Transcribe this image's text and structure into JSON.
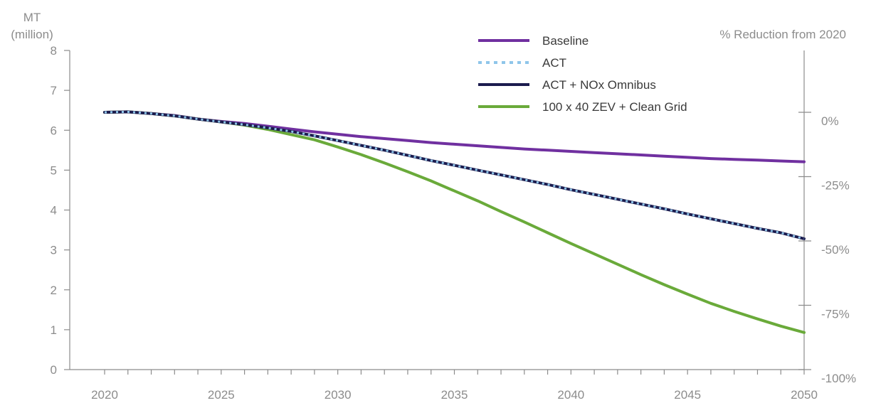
{
  "chart_data": {
    "type": "line",
    "ylabel_left": [
      "MT",
      "(million)"
    ],
    "ylabel_right": "% Reduction from 2020",
    "xlim": [
      2020,
      2050
    ],
    "ylim": [
      0,
      8
    ],
    "x_tick_labels": [
      "2020",
      "2025",
      "2030",
      "2035",
      "2040",
      "2045",
      "2050"
    ],
    "y_tick_labels": [
      "0",
      "1",
      "2",
      "3",
      "4",
      "5",
      "6",
      "7",
      "8"
    ],
    "right_tick_labels": [
      "0%",
      "-25%",
      "-50%",
      "-75%",
      "-100%"
    ],
    "right_axis_baseline": 6.45,
    "legend_position": "top-right",
    "x": [
      2020,
      2021,
      2022,
      2023,
      2024,
      2025,
      2026,
      2027,
      2028,
      2029,
      2030,
      2031,
      2032,
      2033,
      2034,
      2035,
      2036,
      2037,
      2038,
      2039,
      2040,
      2041,
      2042,
      2043,
      2044,
      2045,
      2046,
      2047,
      2048,
      2049,
      2050
    ],
    "series": [
      {
        "name": "Baseline",
        "color": "#7030a0",
        "style": "solid",
        "values": [
          6.45,
          6.46,
          6.42,
          6.37,
          6.28,
          6.22,
          6.17,
          6.1,
          6.03,
          5.96,
          5.9,
          5.84,
          5.79,
          5.74,
          5.69,
          5.65,
          5.61,
          5.57,
          5.53,
          5.5,
          5.47,
          5.44,
          5.41,
          5.38,
          5.35,
          5.32,
          5.29,
          5.27,
          5.25,
          5.23,
          5.21
        ]
      },
      {
        "name": "ACT",
        "color": "#8fc6ea",
        "style": "dotted",
        "values": [
          6.45,
          6.46,
          6.42,
          6.36,
          6.28,
          6.21,
          6.14,
          6.06,
          5.97,
          5.86,
          5.74,
          5.62,
          5.5,
          5.37,
          5.24,
          5.12,
          5.0,
          4.88,
          4.76,
          4.64,
          4.51,
          4.39,
          4.27,
          4.15,
          4.03,
          3.9,
          3.78,
          3.66,
          3.54,
          3.43,
          3.28
        ]
      },
      {
        "name": "ACT + NOx Omnibus",
        "color": "#1c1c4e",
        "style": "solid",
        "values": [
          6.45,
          6.46,
          6.42,
          6.36,
          6.28,
          6.21,
          6.14,
          6.06,
          5.97,
          5.86,
          5.74,
          5.62,
          5.5,
          5.37,
          5.24,
          5.12,
          5.0,
          4.88,
          4.76,
          4.64,
          4.51,
          4.39,
          4.27,
          4.15,
          4.03,
          3.9,
          3.78,
          3.66,
          3.54,
          3.43,
          3.28
        ]
      },
      {
        "name": "100 x 40 ZEV + Clean Grid",
        "color": "#6aaa3a",
        "style": "solid",
        "values": [
          6.45,
          6.46,
          6.42,
          6.36,
          6.28,
          6.21,
          6.13,
          6.02,
          5.89,
          5.76,
          5.58,
          5.39,
          5.18,
          4.96,
          4.73,
          4.48,
          4.23,
          3.96,
          3.7,
          3.43,
          3.16,
          2.9,
          2.64,
          2.38,
          2.13,
          1.89,
          1.66,
          1.46,
          1.27,
          1.09,
          0.93
        ]
      }
    ]
  }
}
